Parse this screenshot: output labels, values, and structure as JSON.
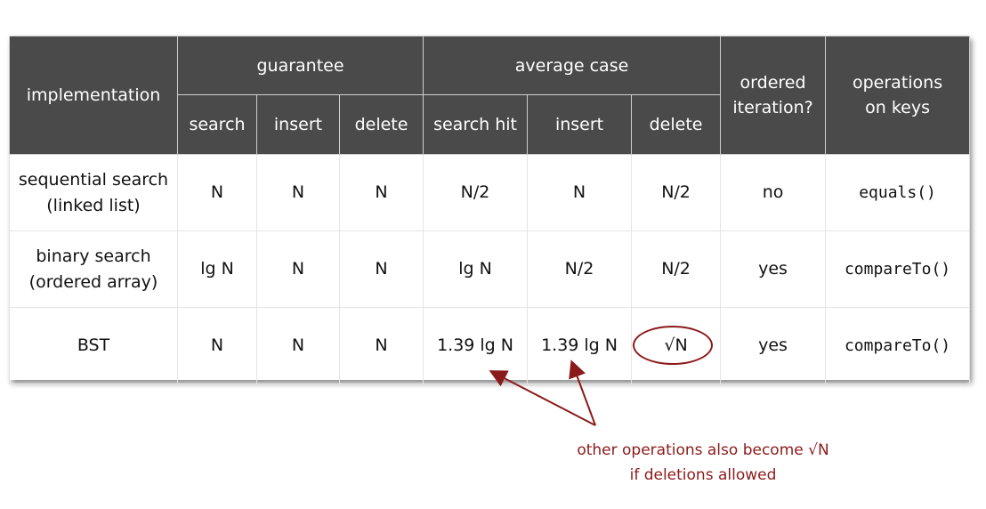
{
  "table": {
    "headers": {
      "implementation": "implementation",
      "guarantee": "guarantee",
      "average_case": "average case",
      "ordered_iteration_line1": "ordered",
      "ordered_iteration_line2": "iteration?",
      "operations_line1": "operations",
      "operations_line2": "on keys",
      "sub": [
        "search",
        "insert",
        "delete",
        "search hit",
        "insert",
        "delete"
      ]
    },
    "rows": [
      {
        "name_line1": "sequential search",
        "name_line2": "(linked list)",
        "cells": [
          "N",
          "N",
          "N",
          "N/2",
          "N",
          "N/2",
          "no",
          "equals()"
        ]
      },
      {
        "name_line1": "binary search",
        "name_line2": "(ordered array)",
        "cells": [
          "lg N",
          "N",
          "N",
          "lg N",
          "N/2",
          "N/2",
          "yes",
          "compareTo()"
        ]
      },
      {
        "name_line1": "BST",
        "name_line2": "",
        "cells": [
          "N",
          "N",
          "N",
          "1.39 lg N",
          "1.39 lg N",
          "√N",
          "yes",
          "compareTo()"
        ]
      }
    ]
  },
  "annotation": {
    "line1": "other operations also become √N",
    "line2": "if deletions allowed"
  },
  "colors": {
    "header_bg": "#4a4a4a",
    "annotation": "#8b1a1a"
  }
}
